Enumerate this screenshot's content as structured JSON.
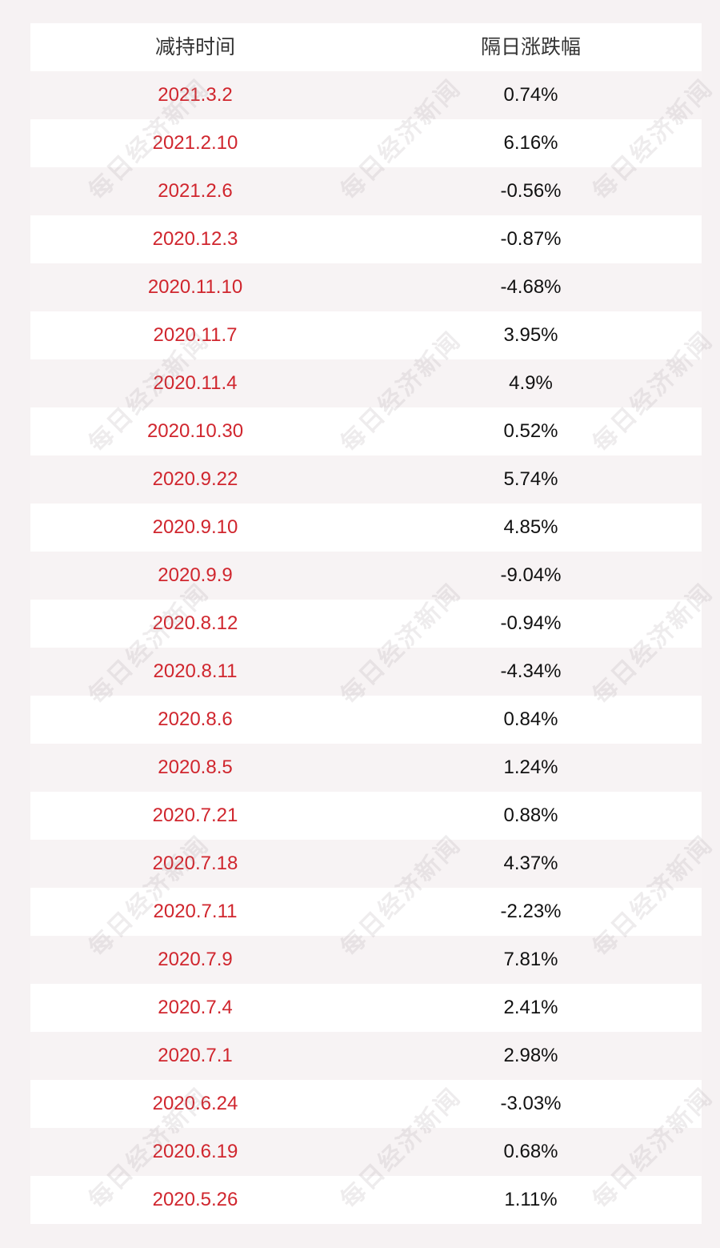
{
  "table": {
    "headers": [
      "减持时间",
      "隔日涨跌幅"
    ],
    "rows": [
      {
        "date": "2021.3.2",
        "change": "0.74%"
      },
      {
        "date": "2021.2.10",
        "change": "6.16%"
      },
      {
        "date": "2021.2.6",
        "change": "-0.56%"
      },
      {
        "date": "2020.12.3",
        "change": "-0.87%"
      },
      {
        "date": "2020.11.10",
        "change": "-4.68%"
      },
      {
        "date": "2020.11.7",
        "change": "3.95%"
      },
      {
        "date": "2020.11.4",
        "change": "4.9%"
      },
      {
        "date": "2020.10.30",
        "change": "0.52%"
      },
      {
        "date": "2020.9.22",
        "change": "5.74%"
      },
      {
        "date": "2020.9.10",
        "change": "4.85%"
      },
      {
        "date": "2020.9.9",
        "change": "-9.04%"
      },
      {
        "date": "2020.8.12",
        "change": "-0.94%"
      },
      {
        "date": "2020.8.11",
        "change": "-4.34%"
      },
      {
        "date": "2020.8.6",
        "change": "0.84%"
      },
      {
        "date": "2020.8.5",
        "change": "1.24%"
      },
      {
        "date": "2020.7.21",
        "change": "0.88%"
      },
      {
        "date": "2020.7.18",
        "change": "4.37%"
      },
      {
        "date": "2020.7.11",
        "change": "-2.23%"
      },
      {
        "date": "2020.7.9",
        "change": "7.81%"
      },
      {
        "date": "2020.7.4",
        "change": "2.41%"
      },
      {
        "date": "2020.7.1",
        "change": "2.98%"
      },
      {
        "date": "2020.6.24",
        "change": "-3.03%"
      },
      {
        "date": "2020.6.19",
        "change": "0.68%"
      },
      {
        "date": "2020.5.26",
        "change": "1.11%"
      }
    ]
  },
  "watermark": "每日经济新闻",
  "colors": {
    "date_text": "#d0262e",
    "value_text": "#111111",
    "row_white": "#ffffff",
    "row_pink": "#f7f3f4"
  }
}
